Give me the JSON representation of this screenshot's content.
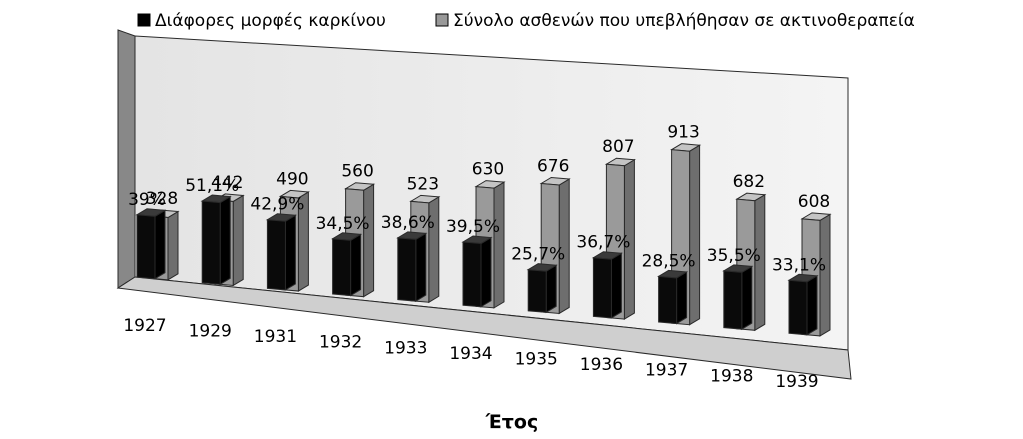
{
  "chart_data": {
    "type": "bar",
    "title": "",
    "xlabel": "Έτος",
    "ylabel": "",
    "categories": [
      "1927",
      "1929",
      "1931",
      "1932",
      "1933",
      "1934",
      "1935",
      "1936",
      "1937",
      "1938",
      "1939"
    ],
    "series": [
      {
        "name": "Διάφορες μορφές καρκίνου",
        "values": [
          39,
          51.1,
          42.9,
          34.5,
          38.6,
          39.5,
          25.7,
          36.7,
          28.5,
          35.5,
          33.1
        ],
        "labels": [
          "39%",
          "51,1%",
          "42,9%",
          "34,5%",
          "38,6%",
          "39,5%",
          "25,7%",
          "36,7%",
          "28,5%",
          "35,5%",
          "33,1%"
        ],
        "unit": "percent of total",
        "color": "#000000"
      },
      {
        "name": "Σύνολο ασθενών που υπεβλήθησαν σε ακτινοθεραπεία",
        "values": [
          328,
          442,
          490,
          560,
          523,
          630,
          676,
          807,
          913,
          682,
          608
        ],
        "labels": [
          "328",
          "442",
          "490",
          "560",
          "523",
          "630",
          "676",
          "807",
          "913",
          "682",
          "608"
        ],
        "color": "#999999"
      }
    ],
    "legend_position": "top",
    "grid": false,
    "style": "3d-clustered-column"
  }
}
